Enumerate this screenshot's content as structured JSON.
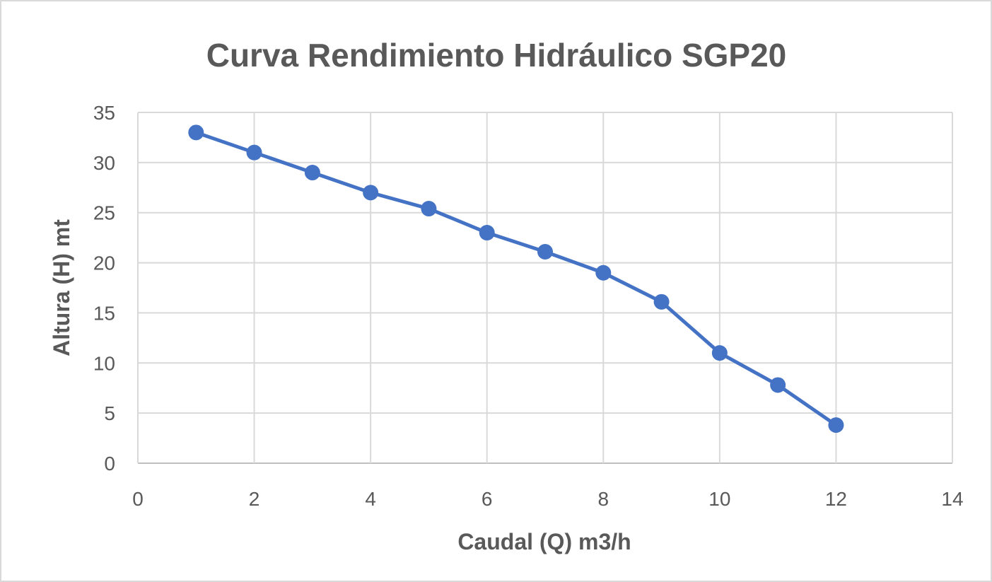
{
  "chart_data": {
    "type": "line",
    "title": "Curva Rendimiento Hidráulico SGP20",
    "xlabel": "Caudal (Q) m3/h",
    "ylabel": "Altura (H) mt",
    "xlim": [
      0,
      14
    ],
    "ylim": [
      0,
      35
    ],
    "xticks": [
      0,
      2,
      4,
      6,
      8,
      10,
      12,
      14
    ],
    "yticks": [
      0,
      5,
      10,
      15,
      20,
      25,
      30,
      35
    ],
    "grid": true,
    "legend": "none",
    "series": [
      {
        "color": "#4472c4",
        "marker": "circle",
        "x": [
          1,
          2,
          3,
          4,
          5,
          6,
          7,
          8,
          9,
          10,
          11,
          12
        ],
        "y": [
          33,
          31,
          29,
          27,
          25.4,
          23,
          21.1,
          19,
          16.1,
          11,
          7.8,
          3.8
        ]
      }
    ]
  }
}
